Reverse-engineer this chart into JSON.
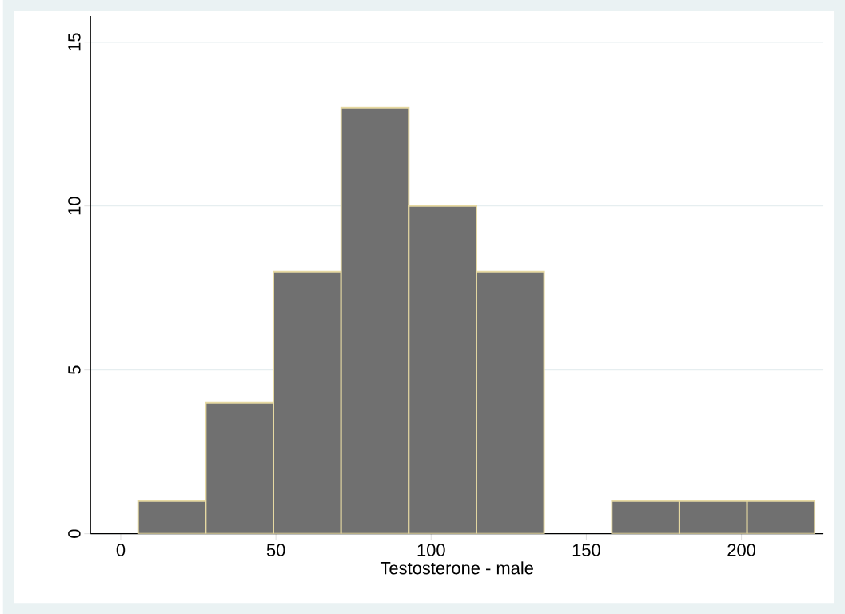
{
  "chart_data": {
    "type": "histogram",
    "xlabel": "Testosterone - male",
    "bins": [
      5.6,
      27.4,
      49.2,
      71.0,
      92.8,
      114.6,
      136.4,
      158.2,
      180.0,
      201.8,
      223.6
    ],
    "values": [
      1,
      4,
      8,
      13,
      10,
      8,
      0,
      1,
      1,
      1
    ],
    "color": "#707070",
    "xlim": [
      -9.7,
      226.4
    ],
    "ylim": [
      0,
      15.8
    ],
    "xticks": [
      0,
      50,
      100,
      150,
      200
    ],
    "yticks": [
      0,
      5,
      10,
      15
    ],
    "grid": "y"
  }
}
